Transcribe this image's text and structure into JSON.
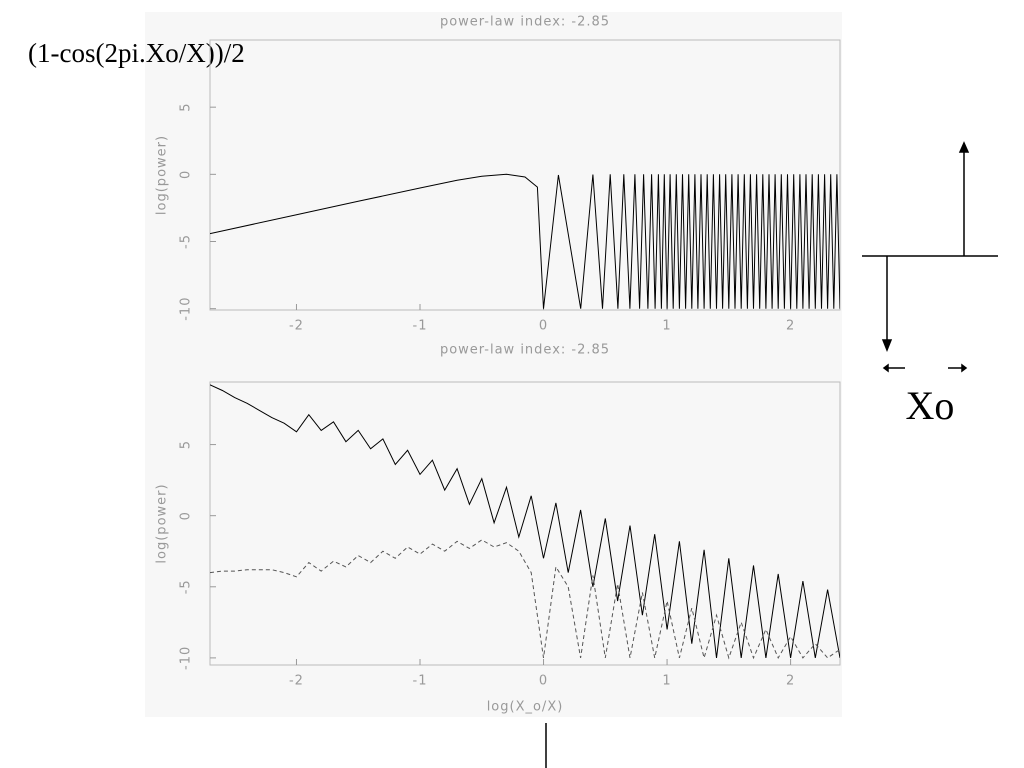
{
  "chart_data": [
    {
      "type": "line",
      "title": "power-law index: -2.85",
      "y_label": "log(power)",
      "xlim": [
        -2.7,
        2.4
      ],
      "ylim": [
        -10.1,
        10
      ],
      "xticks": [
        -2,
        -1,
        0,
        1,
        2
      ],
      "yticks": [
        -10,
        -5,
        0,
        5
      ],
      "x": [
        -2.7,
        -2,
        -1.5,
        -1,
        -0.7,
        -0.5,
        -0.3,
        -0.15,
        -0.05,
        0,
        0.12,
        0.301,
        0.4,
        0.477,
        0.54,
        0.602,
        0.65,
        0.699,
        0.74,
        0.778,
        0.81,
        0.845,
        0.875,
        0.903,
        0.93,
        0.954,
        0.978,
        1,
        1.025,
        1.05,
        1.075,
        1.1,
        1.125,
        1.15,
        1.175,
        1.2,
        1.225,
        1.25,
        1.275,
        1.3,
        1.325,
        1.35,
        1.375,
        1.4,
        1.425,
        1.45,
        1.475,
        1.5,
        1.525,
        1.55,
        1.575,
        1.6,
        1.625,
        1.65,
        1.675,
        1.7,
        1.725,
        1.75,
        1.775,
        1.8,
        1.825,
        1.85,
        1.875,
        1.9,
        1.925,
        1.95,
        1.975,
        2,
        2.025,
        2.05,
        2.075,
        2.1,
        2.125,
        2.15,
        2.175,
        2.2,
        2.225,
        2.25,
        2.275,
        2.3,
        2.325,
        2.35,
        2.375,
        2.4
      ],
      "series": [
        {
          "color": "#000000",
          "style": "solid",
          "values": [
            -4.41,
            -3.01,
            -2.01,
            -1.02,
            -0.44,
            -0.15,
            0,
            -0.2,
            -0.95,
            -10,
            -0.05,
            -10,
            -0.01,
            -10,
            0,
            -10,
            0,
            -10,
            0,
            -10,
            0,
            -10,
            0,
            -10,
            0,
            -10,
            0,
            -10,
            0,
            -10,
            0,
            -10,
            0,
            -10,
            0,
            -10,
            0,
            -10,
            0,
            -10,
            0,
            -10,
            0,
            -10,
            0,
            -10,
            0,
            -10,
            0,
            -10,
            0,
            -10,
            0,
            -10,
            0,
            -10,
            0,
            -10,
            0,
            -10,
            0,
            -10,
            0,
            -10,
            0,
            -10,
            0,
            -10,
            0,
            -10,
            0,
            -10,
            0,
            -10,
            0,
            -10,
            0,
            -10,
            0,
            -10,
            0,
            -10,
            0,
            -10
          ]
        }
      ]
    },
    {
      "type": "line",
      "title": "power-law index: -2.85",
      "y_label": "log(power)",
      "x_label": "log(X_o/X)",
      "xlim": [
        -2.7,
        2.4
      ],
      "ylim": [
        -10.5,
        9.4
      ],
      "xticks": [
        -2,
        -1,
        0,
        1,
        2
      ],
      "yticks": [
        -10,
        -5,
        0,
        5
      ],
      "x": [
        -2.7,
        -2.6,
        -2.5,
        -2.4,
        -2.3,
        -2.2,
        -2.1,
        -2,
        -1.9,
        -1.8,
        -1.7,
        -1.6,
        -1.5,
        -1.4,
        -1.3,
        -1.2,
        -1.1,
        -1,
        -0.9,
        -0.8,
        -0.7,
        -0.6,
        -0.5,
        -0.4,
        -0.3,
        -0.2,
        -0.1,
        0,
        0.1,
        0.2,
        0.3,
        0.4,
        0.5,
        0.6,
        0.7,
        0.8,
        0.9,
        1,
        1.1,
        1.2,
        1.3,
        1.4,
        1.5,
        1.6,
        1.7,
        1.8,
        1.9,
        2,
        2.1,
        2.2,
        2.3,
        2.4
      ],
      "series": [
        {
          "color": "#000000",
          "style": "solid",
          "values": [
            9.2,
            8.8,
            8.3,
            7.9,
            7.4,
            6.9,
            6.5,
            5.9,
            7.1,
            6.0,
            6.6,
            5.2,
            6.0,
            4.7,
            5.4,
            3.6,
            4.6,
            2.9,
            3.9,
            1.8,
            3.3,
            0.8,
            2.6,
            -0.5,
            2.0,
            -1.5,
            1.4,
            -3,
            0.9,
            -4,
            0.4,
            -5,
            -0.2,
            -6,
            -0.7,
            -7,
            -1.3,
            -8,
            -1.8,
            -9,
            -2.4,
            -10,
            -3,
            -10,
            -3.5,
            -10,
            -4.1,
            -10,
            -4.6,
            -10,
            -5.2,
            -10
          ]
        },
        {
          "color": "#555555",
          "style": "dashed",
          "values": [
            -4,
            -3.9,
            -3.9,
            -3.8,
            -3.8,
            -3.8,
            -4.0,
            -4.3,
            -3.3,
            -3.9,
            -3.2,
            -3.6,
            -2.8,
            -3.3,
            -2.5,
            -3.0,
            -2.2,
            -2.7,
            -2.0,
            -2.5,
            -1.8,
            -2.3,
            -1.7,
            -2.2,
            -1.9,
            -2.5,
            -4,
            -10,
            -3.6,
            -5,
            -10,
            -4.2,
            -10,
            -4.8,
            -10,
            -5.4,
            -10,
            -6,
            -10,
            -6.5,
            -10,
            -7,
            -10,
            -7.5,
            -10,
            -8,
            -10,
            -8.5,
            -10,
            -9,
            -10,
            -9.4
          ]
        }
      ]
    }
  ],
  "slide": {
    "formula": "(1-cos(2pi.Xo/X))/2",
    "label": "Xo"
  }
}
